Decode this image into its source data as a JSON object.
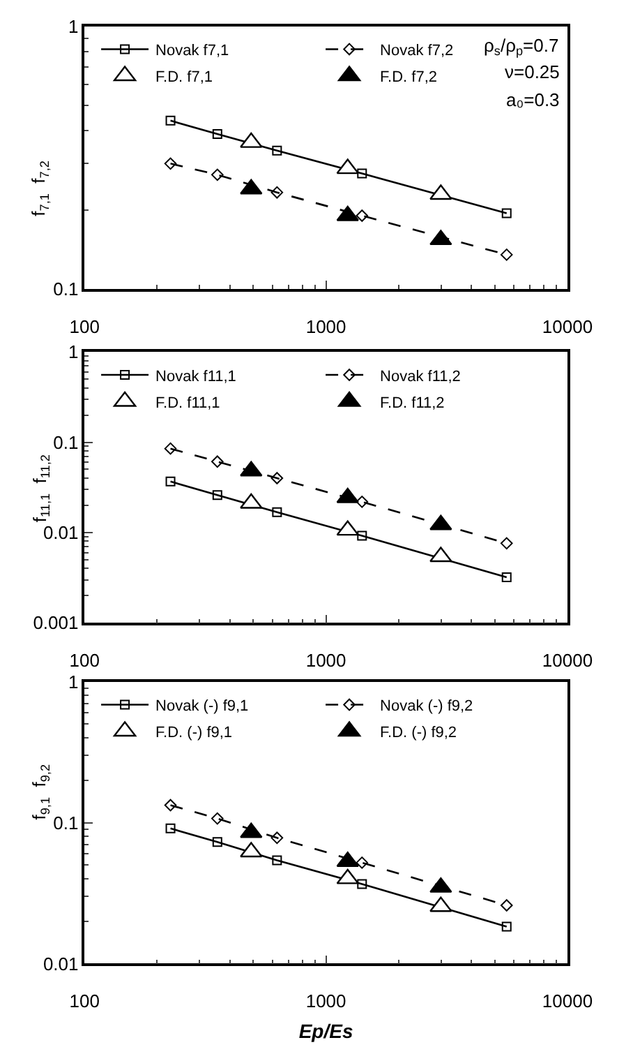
{
  "chart_data": [
    {
      "type": "line",
      "ylabel": "f$_{7,1}$  f$_{7,2}$",
      "log": "xy",
      "legend": "top left",
      "xlim": [
        100,
        10000
      ],
      "xticks": [
        100,
        1000,
        10000
      ],
      "ylim": [
        0.1,
        1
      ],
      "yticks": [
        0.1,
        1
      ],
      "annotations": [
        "ρ$_{s}$/ρ$_{p}$=0.7",
        "ν=0.25",
        "a₀=0.3"
      ],
      "series": [
        {
          "name": "Novak f7,1",
          "marker": "square",
          "line_style": "solid",
          "color": "#000000",
          "x": [
            227,
            355,
            627,
            1410,
            5600
          ],
          "values": [
            0.437,
            0.389,
            0.336,
            0.275,
            0.194
          ]
        },
        {
          "name": "Novak f7,2",
          "marker": "diamond",
          "line_style": "dashed",
          "color": "#000000",
          "x": [
            227,
            355,
            627,
            1410,
            5600
          ],
          "values": [
            0.3,
            0.272,
            0.233,
            0.19,
            0.135
          ]
        },
        {
          "name": "F.D. f7,1",
          "type": "scatter",
          "marker": "triangle",
          "color": "#ffffff",
          "x": [
            490,
            1230,
            2990
          ],
          "values": [
            0.361,
            0.287,
            0.229
          ]
        },
        {
          "name": "F.D. f7,2",
          "type": "scatter",
          "marker": "triangle",
          "color": "#000000",
          "x": [
            490,
            1230,
            2990
          ],
          "values": [
            0.24,
            0.19,
            0.154
          ]
        }
      ]
    },
    {
      "type": "line",
      "ylabel": "f$_{11,1}$  f$_{11,2}$",
      "log": "xy",
      "legend": "top left",
      "xlim": [
        100,
        10000
      ],
      "xticks": [
        100,
        1000,
        10000
      ],
      "ylim": [
        0.001,
        1
      ],
      "yticks": [
        0.001,
        0.01,
        0.1,
        1
      ],
      "series": [
        {
          "name": "Novak f11,1",
          "marker": "square",
          "line_style": "solid",
          "color": "#000000",
          "x": [
            227,
            355,
            627,
            1410,
            5600
          ],
          "values": [
            0.0367,
            0.026,
            0.0168,
            0.0092,
            0.0032
          ]
        },
        {
          "name": "Novak f11,2",
          "marker": "diamond",
          "line_style": "dashed",
          "color": "#000000",
          "x": [
            227,
            355,
            627,
            1410,
            5600
          ],
          "values": [
            0.085,
            0.061,
            0.04,
            0.0219,
            0.0076
          ]
        },
        {
          "name": "F.D. f11,1",
          "type": "scatter",
          "marker": "triangle",
          "color": "#ffffff",
          "x": [
            490,
            1230,
            2990
          ],
          "values": [
            0.0211,
            0.0106,
            0.0054
          ]
        },
        {
          "name": "F.D. f11,2",
          "type": "scatter",
          "marker": "triangle",
          "color": "#000000",
          "x": [
            490,
            1230,
            2990
          ],
          "values": [
            0.048,
            0.0243,
            0.0122
          ]
        }
      ]
    },
    {
      "type": "line",
      "xlabel": "Ep/Es",
      "ylabel": "f$_{9,1}$  f$_{9,2}$",
      "log": "xy",
      "legend": "top left",
      "xlim": [
        100,
        10000
      ],
      "xticks": [
        100,
        1000,
        10000
      ],
      "ylim": [
        0.01,
        1
      ],
      "yticks": [
        0.01,
        0.1,
        1
      ],
      "series": [
        {
          "name": "Novak (-) f9,1",
          "marker": "square",
          "line_style": "solid",
          "color": "#000000",
          "x": [
            227,
            355,
            627,
            1410,
            5600
          ],
          "values": [
            0.091,
            0.073,
            0.054,
            0.0367,
            0.0183
          ]
        },
        {
          "name": "Novak (-) f9,2",
          "marker": "diamond",
          "line_style": "dashed",
          "color": "#000000",
          "x": [
            227,
            355,
            627,
            1410,
            5600
          ],
          "values": [
            0.133,
            0.107,
            0.078,
            0.052,
            0.0259
          ]
        },
        {
          "name": "F.D. (-) f9,1",
          "type": "scatter",
          "marker": "triangle",
          "color": "#ffffff",
          "x": [
            490,
            1230,
            2990
          ],
          "values": [
            0.062,
            0.04,
            0.0254
          ]
        },
        {
          "name": "F.D. (-) f9,2",
          "type": "scatter",
          "marker": "triangle",
          "color": "#000000",
          "x": [
            490,
            1230,
            2990
          ],
          "values": [
            0.085,
            0.053,
            0.0348
          ]
        }
      ]
    }
  ]
}
